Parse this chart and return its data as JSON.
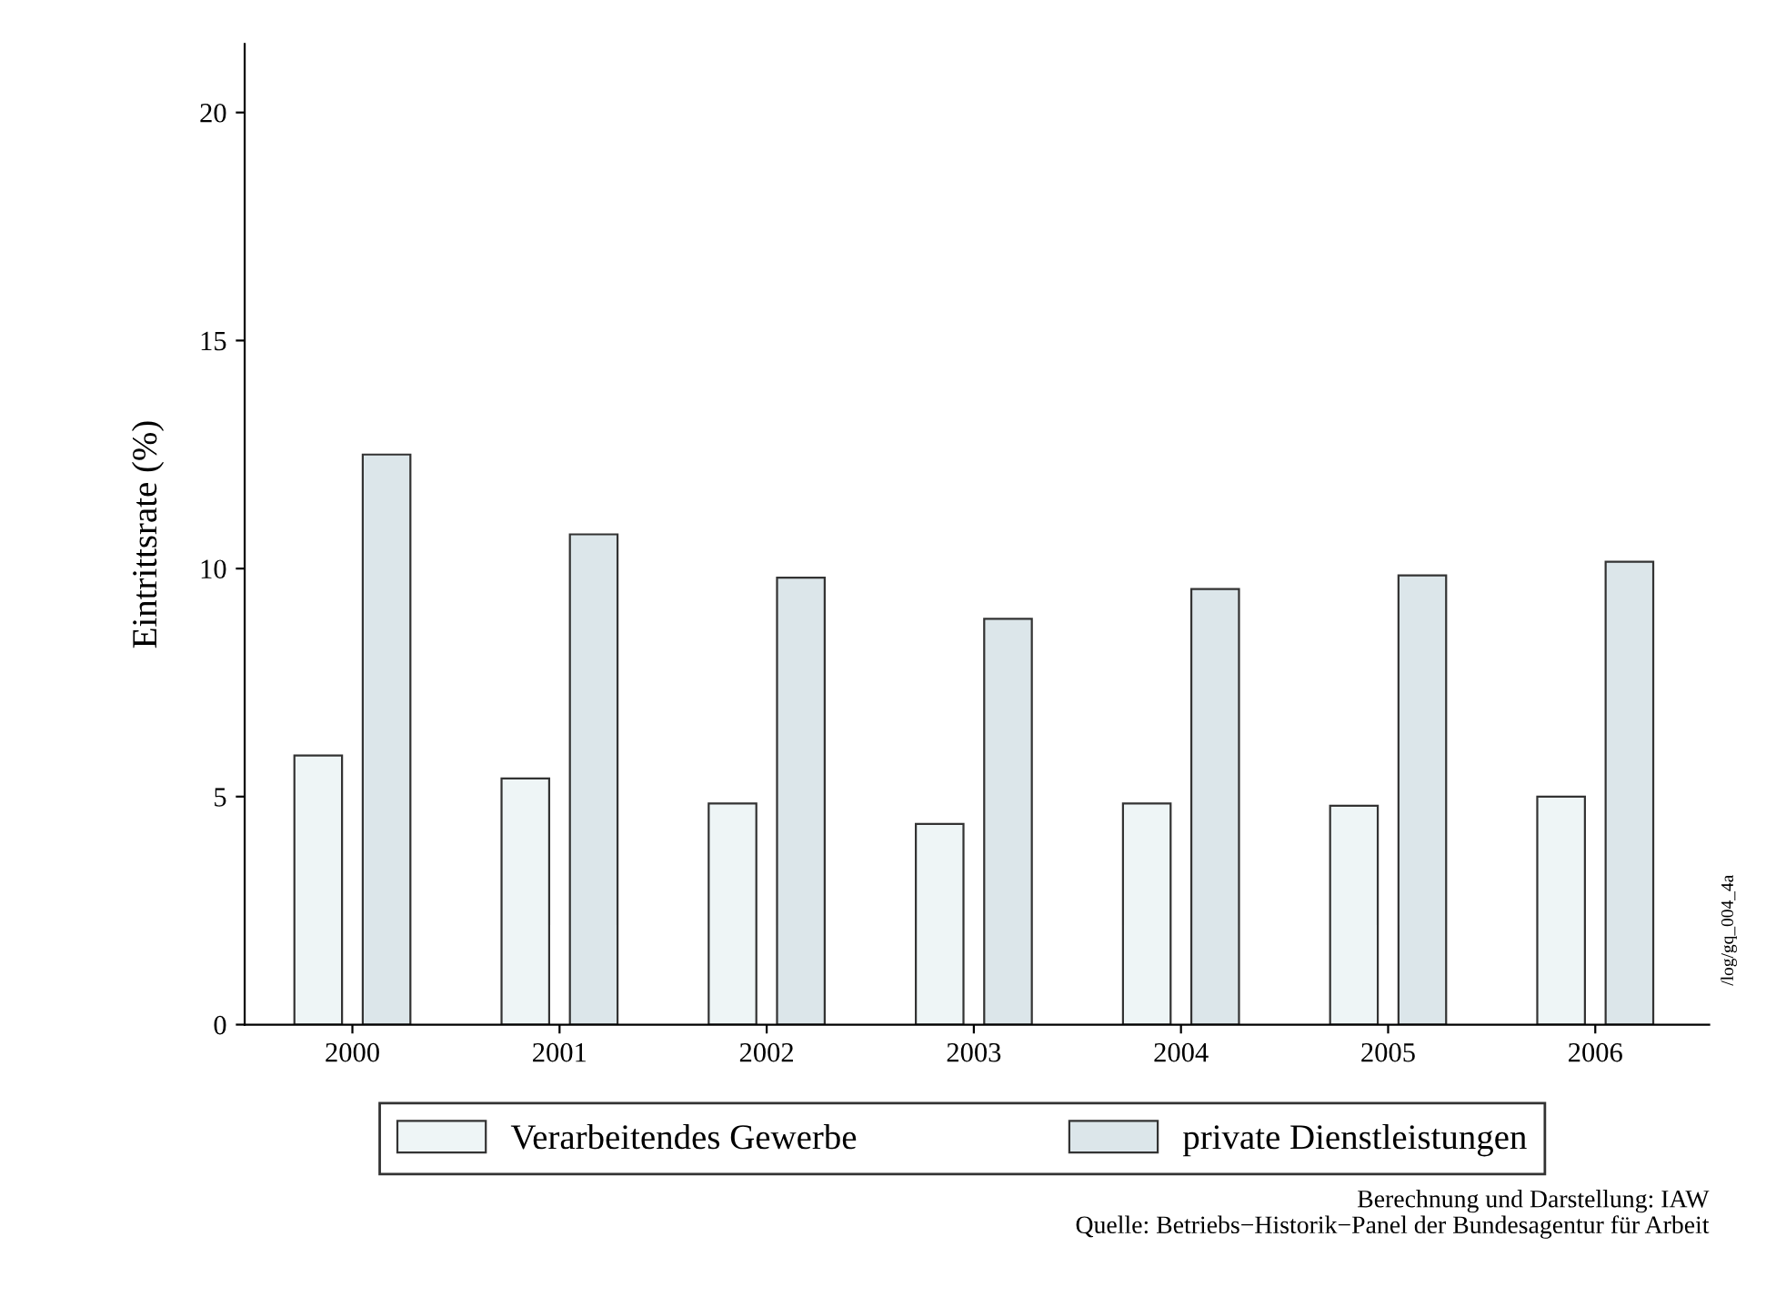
{
  "chart_data": {
    "type": "bar",
    "ylabel": "Eintrittsrate (%)",
    "categories": [
      "2000",
      "2001",
      "2002",
      "2003",
      "2004",
      "2005",
      "2006"
    ],
    "series": [
      {
        "name": "Verarbeitendes Gewerbe",
        "color": "#eef5f6",
        "values": [
          5.9,
          5.4,
          4.85,
          4.4,
          4.85,
          4.8,
          5.0
        ]
      },
      {
        "name": "private Dienstleistungen",
        "color": "#dce6ea",
        "values": [
          12.5,
          10.75,
          9.8,
          8.9,
          9.55,
          9.85,
          10.15
        ]
      }
    ],
    "ylim": [
      0,
      21.5
    ],
    "yticks": [
      0,
      5,
      10,
      15,
      20
    ],
    "grid": false,
    "legend": "bottom",
    "annotations": [
      "/log/gq_004_4a",
      "Berechnung und Darstellung: IAW",
      "Quelle: Betriebs−Historik−Panel der Bundesagentur für Arbeit"
    ]
  }
}
